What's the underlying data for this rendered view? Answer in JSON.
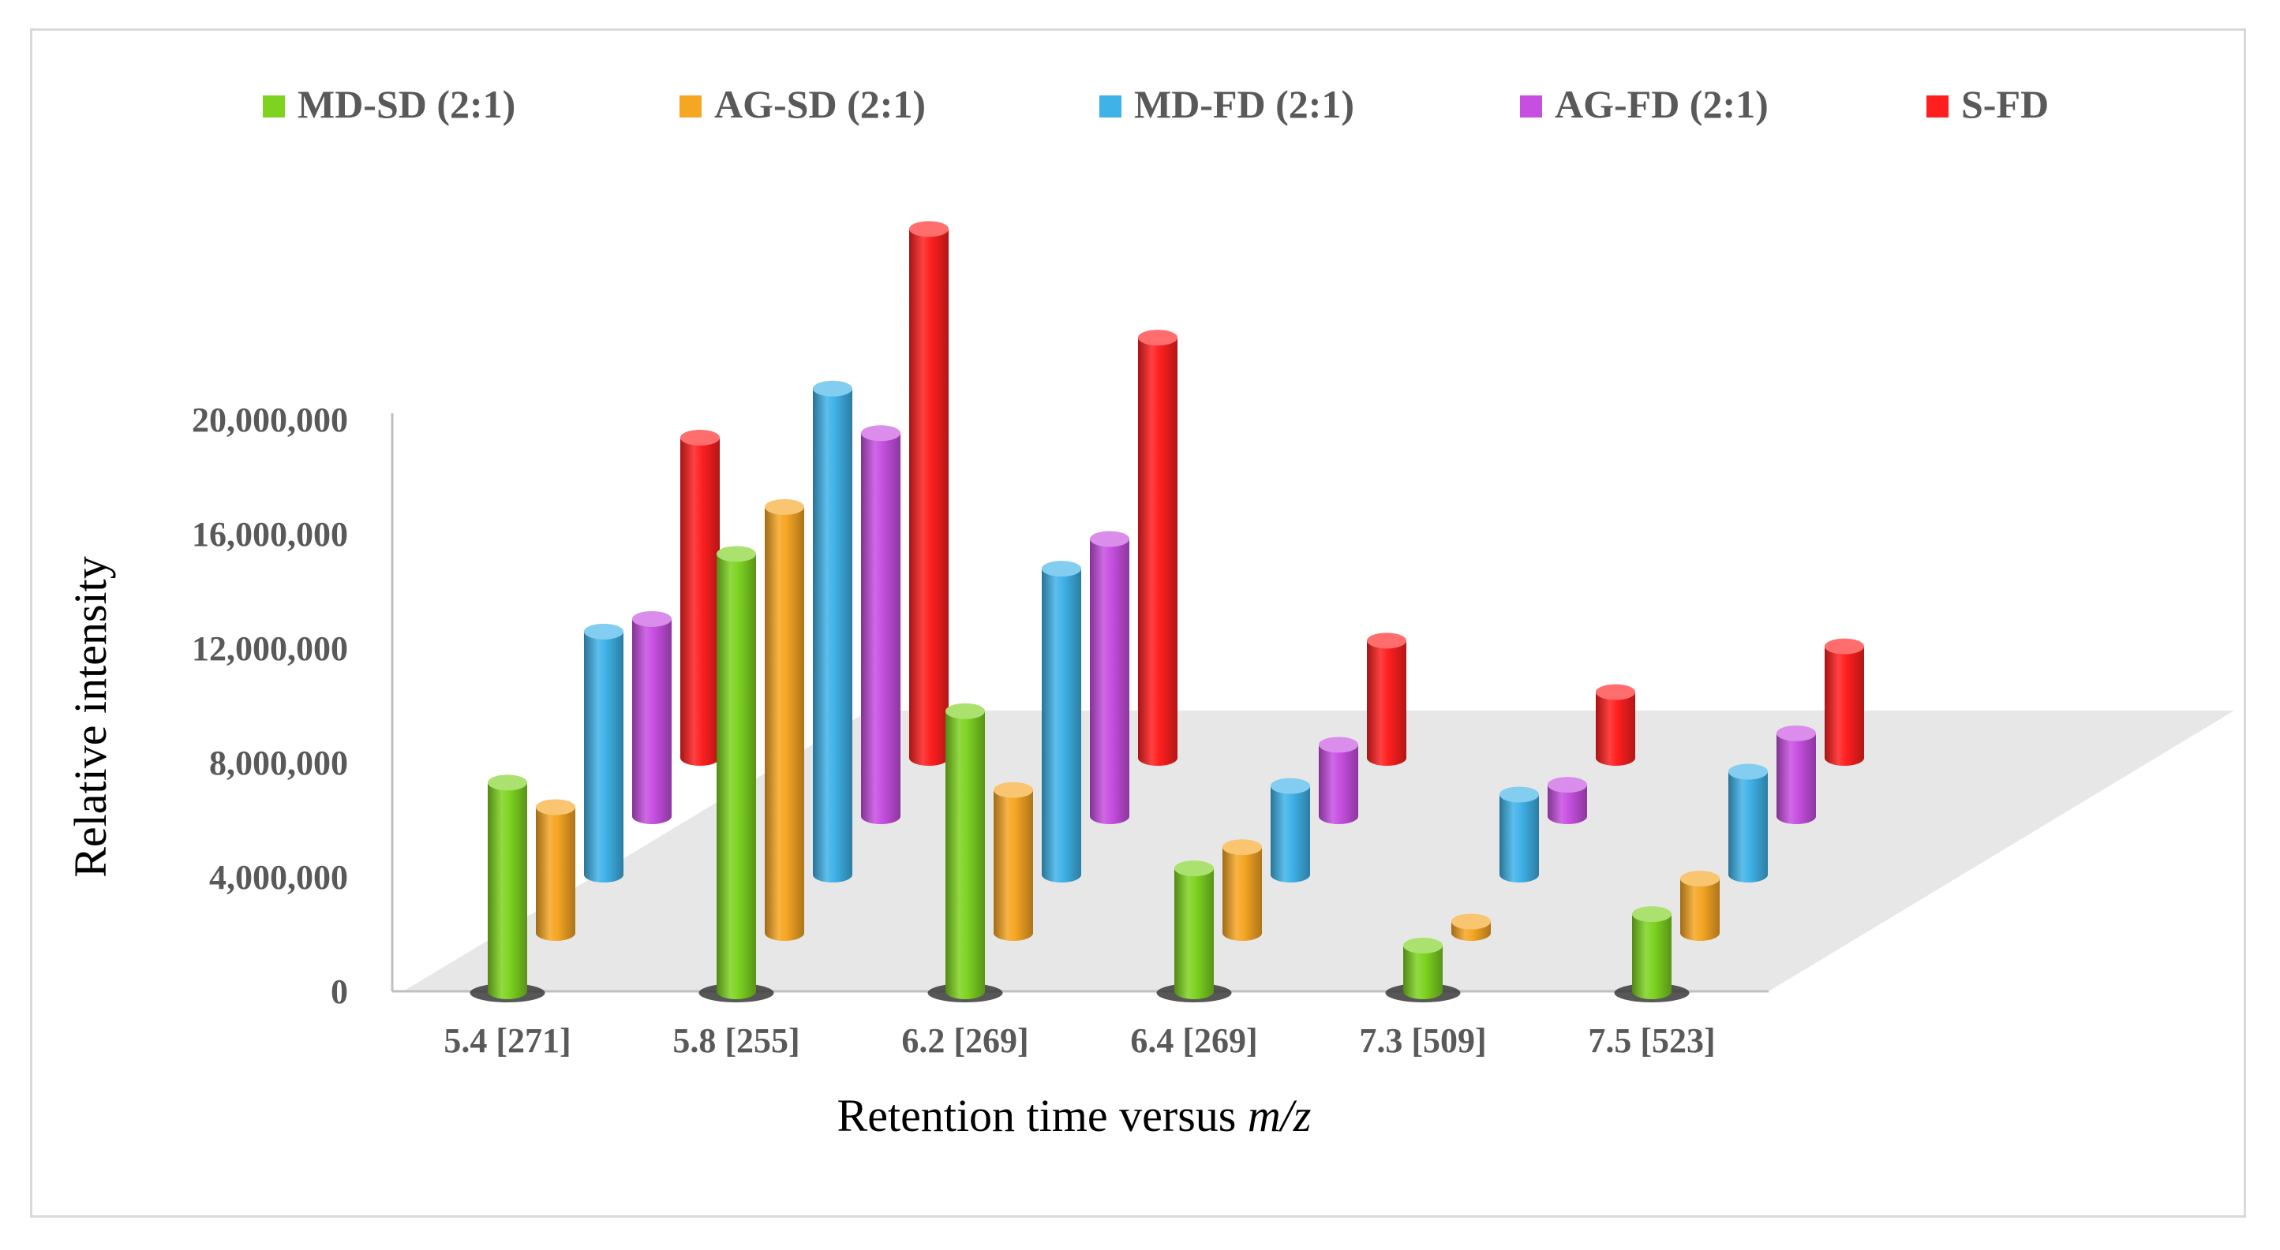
{
  "chart_data": {
    "type": "bar",
    "variant": "3d-column",
    "title": "",
    "xlabel_prefix": "Retention time versus ",
    "xlabel_italic": "m/z",
    "ylabel": "Relative intensity",
    "ylim": [
      0,
      20000000
    ],
    "yticks": [
      "0",
      "4,000,000",
      "8,000,000",
      "12,000,000",
      "16,000,000",
      "20,000,000"
    ],
    "ytick_values": [
      0,
      4000000,
      8000000,
      12000000,
      16000000,
      20000000
    ],
    "categories": [
      "5.4 [271]",
      "5.8 [255]",
      "6.2 [269]",
      "6.4 [269]",
      "7.3 [509]",
      "7.5 [523]"
    ],
    "series": [
      {
        "name": "MD-SD (2:1)",
        "color": "#7ed321",
        "values": [
          7300000,
          15300000,
          9800000,
          4300000,
          1600000,
          2700000
        ]
      },
      {
        "name": "AG-SD (2:1)",
        "color": "#f5a623",
        "values": [
          4400000,
          14900000,
          5000000,
          3000000,
          400000,
          1900000
        ]
      },
      {
        "name": "MD-FD (2:1)",
        "color": "#3fb2e8",
        "values": [
          8500000,
          17000000,
          10700000,
          3100000,
          2800000,
          3600000
        ]
      },
      {
        "name": "AG-FD (2:1)",
        "color": "#c64fe0",
        "values": [
          6900000,
          13400000,
          9700000,
          2500000,
          1100000,
          2900000
        ]
      },
      {
        "name": "S-FD",
        "color": "#ff1f1f",
        "values": [
          11200000,
          18500000,
          14700000,
          4100000,
          2300000,
          3900000
        ]
      }
    ],
    "legend_position": "top"
  }
}
